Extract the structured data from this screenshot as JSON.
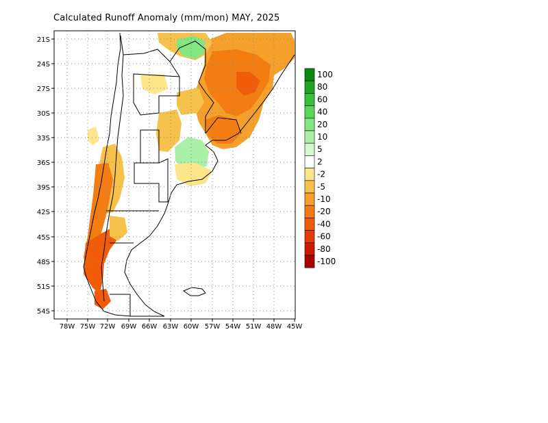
{
  "title": "Calculated Runoff Anomaly (mm/mon) MAY, 2025",
  "map": {
    "region": "Southern South America (Argentina, Chile, Uruguay, southern Brazil)",
    "lon_range": [
      -80,
      -45
    ],
    "lat_range": [
      -55,
      -20
    ],
    "x_ticks": [
      "78W",
      "75W",
      "72W",
      "69W",
      "66W",
      "63W",
      "60W",
      "57W",
      "54W",
      "51W",
      "48W",
      "45W"
    ],
    "y_ticks": [
      "21S",
      "24S",
      "27S",
      "30S",
      "33S",
      "36S",
      "39S",
      "42S",
      "45S",
      "48S",
      "51S",
      "54S"
    ],
    "grid": "dotted"
  },
  "colorbar": {
    "labels": [
      "100",
      "80",
      "60",
      "40",
      "20",
      "10",
      "5",
      "2",
      "-2",
      "-5",
      "-10",
      "-20",
      "-40",
      "-60",
      "-80",
      "-100"
    ],
    "colors": [
      "#0b8a12",
      "#1fa51f",
      "#35c135",
      "#58d758",
      "#82e682",
      "#aaf0a8",
      "#d2f8cf",
      "#ffffff",
      "#fde58a",
      "#f6c24c",
      "#f5a02b",
      "#f47d12",
      "#f25c08",
      "#e73a05",
      "#cf1905",
      "#a80303"
    ]
  }
}
